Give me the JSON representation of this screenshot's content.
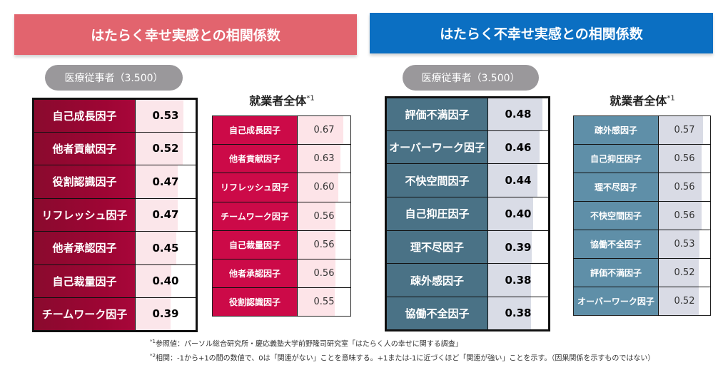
{
  "left_panel": {
    "title": "はたらく幸せ実感との相関係数",
    "color": "#e2646e",
    "group_label": "医療従事者（3.500）",
    "comparison_title": "就業者全体",
    "comparison_sup": "*1",
    "main_rows": [
      {
        "label": "自己成長因子",
        "value": "0.53"
      },
      {
        "label": "他者貢献因子",
        "value": "0.52"
      },
      {
        "label": "役割認識因子",
        "value": "0.47"
      },
      {
        "label": "リフレッシュ因子",
        "value": "0.47"
      },
      {
        "label": "他者承認因子",
        "value": "0.45"
      },
      {
        "label": "自己裁量因子",
        "value": "0.40"
      },
      {
        "label": "チームワーク因子",
        "value": "0.39"
      }
    ],
    "comparison_rows": [
      {
        "label": "自己成長因子",
        "value": "0.67"
      },
      {
        "label": "他者貢献因子",
        "value": "0.63"
      },
      {
        "label": "リフレッシュ因子",
        "value": "0.60"
      },
      {
        "label": "チームワーク因子",
        "value": "0.56"
      },
      {
        "label": "自己裁量因子",
        "value": "0.56"
      },
      {
        "label": "他者承認因子",
        "value": "0.56"
      },
      {
        "label": "役割認識因子",
        "value": "0.55"
      }
    ]
  },
  "right_panel": {
    "title": "はたらく不幸せ実感との相関係数",
    "color": "#0b6fc2",
    "group_label": "医療従事者（3.500）",
    "comparison_title": "就業者全体",
    "comparison_sup": "*1",
    "main_rows": [
      {
        "label": "評価不満因子",
        "value": "0.48"
      },
      {
        "label": "オーバーワーク因子",
        "value": "0.46"
      },
      {
        "label": "不快空間因子",
        "value": "0.44"
      },
      {
        "label": "自己抑圧因子",
        "value": "0.40"
      },
      {
        "label": "理不尽因子",
        "value": "0.39"
      },
      {
        "label": "疎外感因子",
        "value": "0.38"
      },
      {
        "label": "協働不全因子",
        "value": "0.38"
      }
    ],
    "comparison_rows": [
      {
        "label": "疎外感因子",
        "value": "0.57"
      },
      {
        "label": "自己抑圧因子",
        "value": "0.56"
      },
      {
        "label": "理不尽因子",
        "value": "0.56"
      },
      {
        "label": "不快空間因子",
        "value": "0.56"
      },
      {
        "label": "協働不全因子",
        "value": "0.53"
      },
      {
        "label": "評価不満因子",
        "value": "0.52"
      },
      {
        "label": "オーバーワーク因子",
        "value": "0.52"
      }
    ]
  },
  "footnotes": [
    {
      "mark": "*1",
      "text": "参照値：パーソル総合研究所・慶応義塾大学前野隆司研究室「はたらく人の幸せに関する調査」"
    },
    {
      "mark": "*2",
      "text": "相関：-1から+1の間の数値で、0は「関連がない」ことを意味する。+1または-1に近づくほど「関連が強い」ことを示す。（因果関係を示すものではない）"
    }
  ]
}
